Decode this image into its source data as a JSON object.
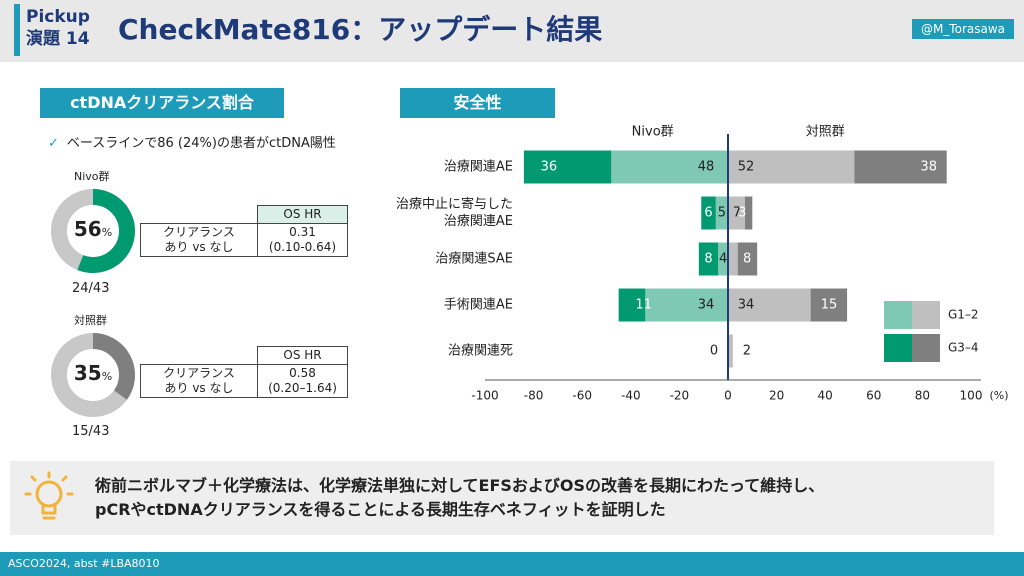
{
  "header": {
    "pickup_line1": "Pickup",
    "pickup_line2": "演題 14",
    "title": "CheckMate816：アップデート結果",
    "handle": "@M_Torasawa"
  },
  "left": {
    "section_title": "ctDNAクリアランス割合",
    "note": "ベースラインで86 (24%)の患者がctDNA陽性",
    "groups": [
      {
        "label": "Nivo群",
        "percent": 56,
        "pct_text": "56",
        "fraction": "24/43",
        "color": "#009970",
        "table": {
          "header": "OS HR",
          "row_label_1": "クリアランス",
          "row_label_2": "あり vs なし",
          "value": "0.31",
          "ci": "(0.10-0.64)"
        }
      },
      {
        "label": "対照群",
        "percent": 35,
        "pct_text": "35",
        "fraction": "15/43",
        "color": "#7f7f7f",
        "table": {
          "header": "OS HR",
          "row_label_1": "クリアランス",
          "row_label_2": "あり vs なし",
          "value": "0.58",
          "ci": "(0.20–1.64)"
        }
      }
    ],
    "percent_sign": "%"
  },
  "right": {
    "section_title": "安全性",
    "nivo_label": "Nivo群",
    "ctrl_label": "対照群",
    "unit": "(%)"
  },
  "chart_data": {
    "type": "bar",
    "orientation": "horizontal-diverging",
    "categories": [
      "治療関連AE",
      "治療中止に寄与した治療関連AE",
      "治療関連SAE",
      "手術関連AE",
      "治療関連死"
    ],
    "category_lines": [
      [
        "治療関連AE"
      ],
      [
        "治療中止に寄与した",
        "治療関連AE"
      ],
      [
        "治療関連SAE"
      ],
      [
        "手術関連AE"
      ],
      [
        "治療関連死"
      ]
    ],
    "series": [
      {
        "name": "Nivo群 G3–4",
        "values": [
          36,
          6,
          8,
          11,
          0
        ],
        "color": "#009970"
      },
      {
        "name": "Nivo群 G1–2",
        "values": [
          48,
          5,
          4,
          34,
          0
        ],
        "color": "#7fc8b3"
      },
      {
        "name": "対照群 G1–2",
        "values": [
          52,
          7,
          4,
          34,
          2
        ],
        "color": "#bfbfbf"
      },
      {
        "name": "対照群 G3–4",
        "values": [
          38,
          3,
          8,
          15,
          0
        ],
        "color": "#7f7f7f"
      }
    ],
    "label_rows": [
      {
        "nivo_g34": "36",
        "nivo_g12": "48",
        "ctrl_g12": "52",
        "ctrl_g34": "38"
      },
      {
        "nivo_g34": "6",
        "nivo_g12": "5",
        "ctrl_g12": "7",
        "ctrl_g34": "3"
      },
      {
        "nivo_g34": "8",
        "nivo_g12": "4",
        "ctrl_g12": "",
        "ctrl_g34": "8"
      },
      {
        "nivo_g34": "11",
        "nivo_g12": "34",
        "ctrl_g12": "34",
        "ctrl_g34": "15"
      },
      {
        "nivo_g34": "",
        "nivo_g12": "0",
        "ctrl_g12": "2",
        "ctrl_g34": ""
      }
    ],
    "xlim": [
      -100,
      100
    ],
    "xticks": [
      -100,
      -80,
      -60,
      -40,
      -20,
      0,
      20,
      40,
      60,
      80,
      100
    ],
    "xlabel": "(%)",
    "legend": [
      {
        "label": "G1–2",
        "colors": [
          "#7fc8b3",
          "#bfbfbf"
        ]
      },
      {
        "label": "G3–4",
        "colors": [
          "#009970",
          "#7f7f7f"
        ]
      }
    ]
  },
  "conclusion": {
    "line1": "術前ニボルマブ＋化学療法は、化学療法単独に対してEFSおよびOSの改善を長期にわたって維持し、",
    "line2": "pCRやctDNAクリアランスを得ることによる長期生存ベネフィットを証明した"
  },
  "footer": {
    "text": "ASCO2024, abst #LBA8010"
  }
}
